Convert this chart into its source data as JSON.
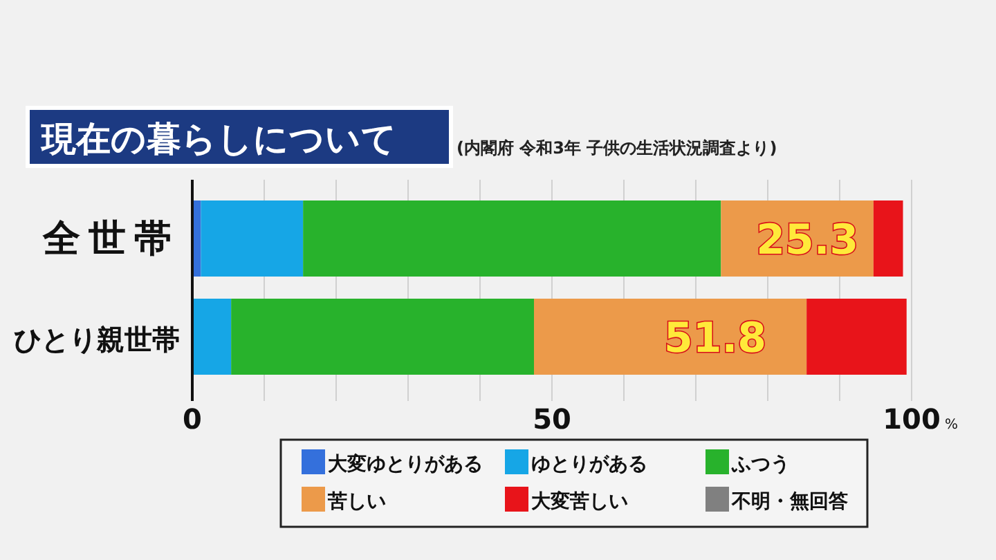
{
  "chart_data": {
    "type": "bar",
    "orientation": "horizontal",
    "stacked": true,
    "title": "現在の暮らしについて",
    "subtitle": "(内閣府  令和3年 子供の生活状況調査より)",
    "categories": [
      "全世帯",
      "ひとり親世帯"
    ],
    "series": [
      {
        "name": "大変ゆとりがある",
        "color": "#3470dc",
        "values": [
          1.2,
          null
        ]
      },
      {
        "name": "ゆとりがある",
        "color": "#16a6e6",
        "values": [
          14.2,
          5.4
        ]
      },
      {
        "name": "ふつう",
        "color": "#28b22c",
        "values": [
          58.1,
          42.1
        ]
      },
      {
        "name": "苦しい",
        "color": "#ec9a4a",
        "values": [
          21.2,
          37.9
        ]
      },
      {
        "name": "大変苦しい",
        "color": "#e8141a",
        "values": [
          4.1,
          13.9
        ]
      },
      {
        "name": "不明・無回答",
        "color": "#808080",
        "values": [
          null,
          null
        ]
      }
    ],
    "xlim": [
      0,
      100
    ],
    "xticks": [
      0,
      {
        "value": 10,
        "label": null
      },
      {
        "value": 20,
        "label": null
      },
      {
        "value": 30,
        "label": null
      },
      {
        "value": 40,
        "label": null
      },
      50,
      {
        "value": 60,
        "label": null
      },
      {
        "value": 70,
        "label": null
      },
      {
        "value": 80,
        "label": null
      },
      {
        "value": 90,
        "label": null
      },
      100
    ],
    "xlabel": "%",
    "grid": "x",
    "legend": "bottom",
    "annotations": [
      {
        "text": "25.3",
        "x": 85.5,
        "y": "全世帯"
      },
      {
        "text": "51.8",
        "x": 72.7,
        "y": "ひとり親世帯"
      }
    ]
  }
}
